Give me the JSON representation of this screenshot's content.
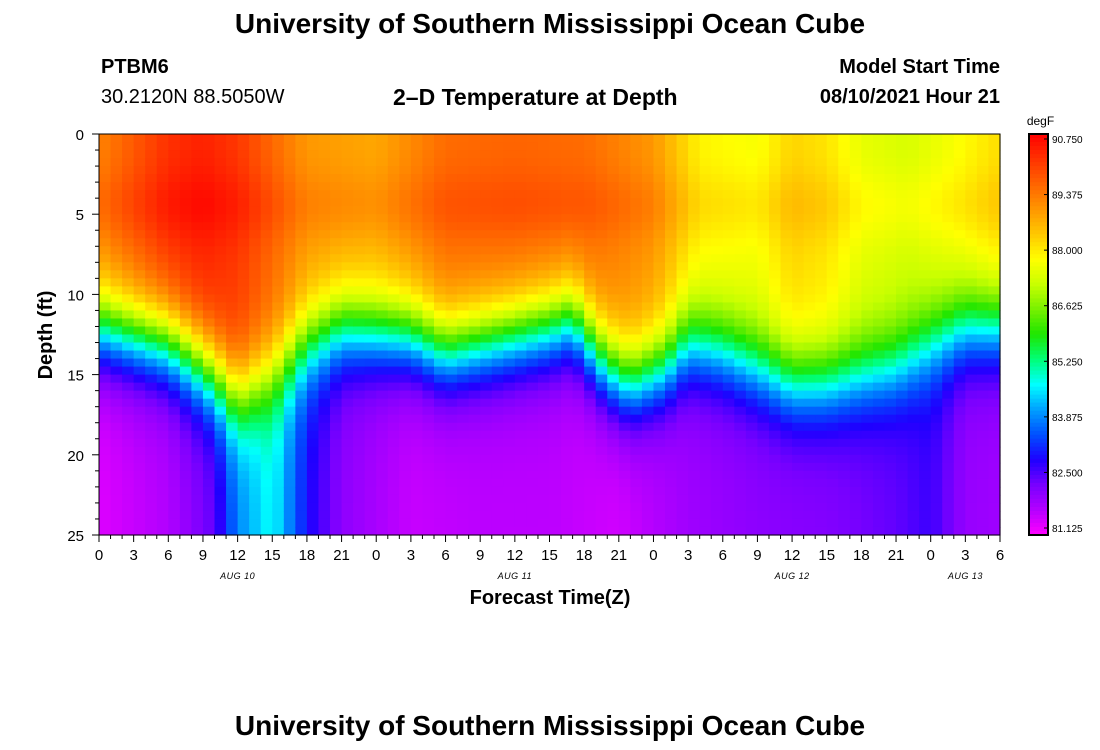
{
  "header": {
    "title": "University of Southern Mississippi Ocean Cube",
    "station_id": "PTBM6",
    "station_coords": "30.2120N  88.5050W",
    "model_start_label": "Model Start Time",
    "model_start_value": "08/10/2021 Hour 21"
  },
  "footer": {
    "title": "University of Southern Mississippi Ocean Cube"
  },
  "chart_data": {
    "type": "heatmap",
    "title": "2–D Temperature at Depth",
    "xlabel": "Forecast Time(Z)",
    "ylabel": "Depth (ft)",
    "x_range_hours": [
      0,
      78
    ],
    "y_range_ft": [
      0,
      25
    ],
    "y_inverted": true,
    "x_tick_labels": [
      "0",
      "3",
      "6",
      "9",
      "12",
      "15",
      "18",
      "21",
      "0",
      "3",
      "6",
      "9",
      "12",
      "15",
      "18",
      "21",
      "0",
      "3",
      "6",
      "9",
      "12",
      "15",
      "18",
      "21",
      "0",
      "3",
      "6"
    ],
    "y_tick_labels": [
      "0",
      "5",
      "10",
      "15",
      "20",
      "25"
    ],
    "day_labels": [
      {
        "label": "AUG 10",
        "hour": 12
      },
      {
        "label": "AUG 11",
        "hour": 36
      },
      {
        "label": "AUG 12",
        "hour": 60
      },
      {
        "label": "AUG 13",
        "hour": 75
      }
    ],
    "colorbar": {
      "unit": "degF",
      "min": 80.5,
      "max": 91.25,
      "tick_labels": [
        "90.750",
        "89.375",
        "88.000",
        "86.625",
        "85.250",
        "83.875",
        "82.500",
        "81.125"
      ],
      "colors": [
        "#ff00ff",
        "#b400ff",
        "#7800ff",
        "#1e00ff",
        "#0050ff",
        "#00a0ff",
        "#00ffff",
        "#00ff78",
        "#1ee600",
        "#78f000",
        "#c8ff00",
        "#ffff00",
        "#ffc800",
        "#ff9600",
        "#ff6400",
        "#ff3200",
        "#ff0000"
      ]
    },
    "grid": false,
    "legend": "colorbar-right",
    "thermocline_depth_ft": [
      {
        "hour": 0,
        "depth": 12.0
      },
      {
        "hour": 6,
        "depth": 13.0
      },
      {
        "hour": 9,
        "depth": 14.5
      },
      {
        "hour": 12,
        "depth": 16.5
      },
      {
        "hour": 15,
        "depth": 15.0
      },
      {
        "hour": 18,
        "depth": 13.0
      },
      {
        "hour": 21,
        "depth": 12.0
      },
      {
        "hour": 27,
        "depth": 12.5
      },
      {
        "hour": 30,
        "depth": 13.5
      },
      {
        "hour": 33,
        "depth": 13.0
      },
      {
        "hour": 36,
        "depth": 12.5
      },
      {
        "hour": 39,
        "depth": 12.0
      },
      {
        "hour": 41,
        "depth": 11.5
      },
      {
        "hour": 42,
        "depth": 12.5
      },
      {
        "hour": 44,
        "depth": 14.5
      },
      {
        "hour": 46,
        "depth": 15.5
      },
      {
        "hour": 49,
        "depth": 14.5
      },
      {
        "hour": 51,
        "depth": 13.0
      },
      {
        "hour": 54,
        "depth": 13.5
      },
      {
        "hour": 57,
        "depth": 14.5
      },
      {
        "hour": 60,
        "depth": 15.5
      },
      {
        "hour": 63,
        "depth": 15.5
      },
      {
        "hour": 66,
        "depth": 15.0
      },
      {
        "hour": 69,
        "depth": 14.5
      },
      {
        "hour": 72,
        "depth": 13.0
      },
      {
        "hour": 75,
        "depth": 12.0
      },
      {
        "hour": 78,
        "depth": 12.0
      }
    ],
    "surface_temp_degF": [
      {
        "hour": 0,
        "temp": 89.5
      },
      {
        "hour": 6,
        "temp": 90.6
      },
      {
        "hour": 9,
        "temp": 90.8
      },
      {
        "hour": 12,
        "temp": 90.5
      },
      {
        "hour": 18,
        "temp": 89.2
      },
      {
        "hour": 24,
        "temp": 89.0
      },
      {
        "hour": 30,
        "temp": 89.8
      },
      {
        "hour": 36,
        "temp": 89.9
      },
      {
        "hour": 42,
        "temp": 89.8
      },
      {
        "hour": 48,
        "temp": 89.2
      },
      {
        "hour": 52,
        "temp": 88.0
      },
      {
        "hour": 57,
        "temp": 87.8
      },
      {
        "hour": 60,
        "temp": 88.4
      },
      {
        "hour": 63,
        "temp": 88.2
      },
      {
        "hour": 66,
        "temp": 87.6
      },
      {
        "hour": 70,
        "temp": 87.4
      },
      {
        "hour": 74,
        "temp": 87.8
      },
      {
        "hour": 78,
        "temp": 88.3
      }
    ],
    "bottom_temp_degF": [
      {
        "hour": 0,
        "temp": 80.8
      },
      {
        "hour": 6,
        "temp": 81.2
      },
      {
        "hour": 10,
        "temp": 82.0
      },
      {
        "hour": 12,
        "temp": 83.6
      },
      {
        "hour": 15,
        "temp": 84.6
      },
      {
        "hour": 18,
        "temp": 82.6
      },
      {
        "hour": 21,
        "temp": 81.6
      },
      {
        "hour": 27,
        "temp": 81.0
      },
      {
        "hour": 33,
        "temp": 81.1
      },
      {
        "hour": 39,
        "temp": 81.1
      },
      {
        "hour": 45,
        "temp": 80.9
      },
      {
        "hour": 51,
        "temp": 81.4
      },
      {
        "hour": 57,
        "temp": 81.6
      },
      {
        "hour": 63,
        "temp": 81.7
      },
      {
        "hour": 69,
        "temp": 82.0
      },
      {
        "hour": 72,
        "temp": 82.3
      },
      {
        "hour": 75,
        "temp": 81.5
      },
      {
        "hour": 78,
        "temp": 81.4
      }
    ]
  }
}
